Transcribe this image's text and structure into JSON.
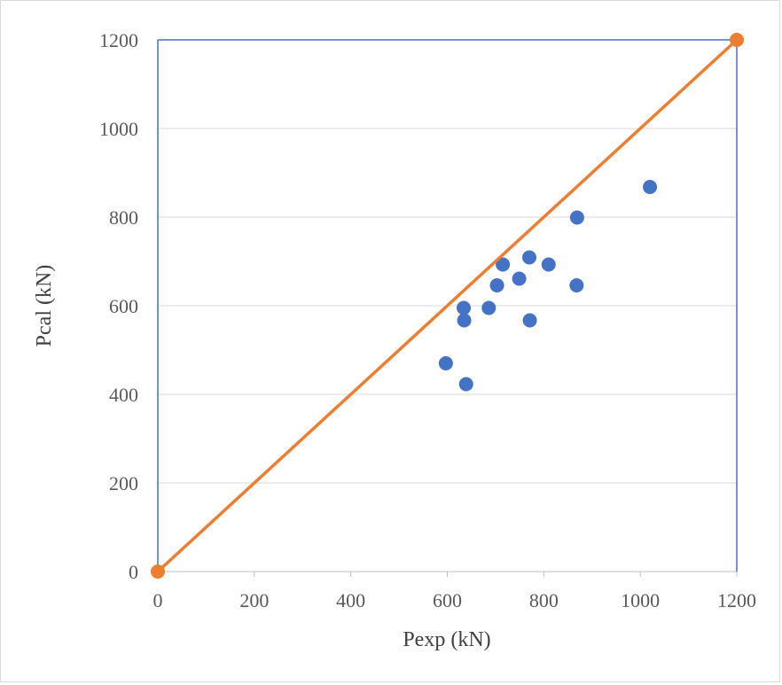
{
  "chart_data": {
    "type": "scatter",
    "xlabel": "Pexp (kN)",
    "ylabel": "Pcal (kN)",
    "xlim": [
      0,
      1200
    ],
    "ylim": [
      0,
      1200
    ],
    "xticks": [
      0,
      200,
      400,
      600,
      800,
      1000,
      1200
    ],
    "yticks": [
      0,
      200,
      400,
      600,
      800,
      1000,
      1200
    ],
    "grid": "horizontal",
    "legend": "none",
    "series": [
      {
        "type": "scatter",
        "color": "#4472C4",
        "points": [
          {
            "x": 597,
            "y": 470
          },
          {
            "x": 634,
            "y": 595
          },
          {
            "x": 635,
            "y": 567
          },
          {
            "x": 639,
            "y": 423
          },
          {
            "x": 686,
            "y": 595
          },
          {
            "x": 703,
            "y": 646
          },
          {
            "x": 715,
            "y": 693
          },
          {
            "x": 749,
            "y": 661
          },
          {
            "x": 770,
            "y": 709
          },
          {
            "x": 771,
            "y": 567
          },
          {
            "x": 810,
            "y": 693
          },
          {
            "x": 868,
            "y": 646
          },
          {
            "x": 869,
            "y": 799
          },
          {
            "x": 1020,
            "y": 868
          }
        ]
      },
      {
        "type": "line",
        "color": "#ED7D31",
        "points": [
          {
            "x": 0,
            "y": 0
          },
          {
            "x": 1200,
            "y": 1200
          }
        ]
      }
    ]
  }
}
